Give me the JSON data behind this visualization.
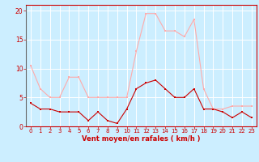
{
  "hours": [
    0,
    1,
    2,
    3,
    4,
    5,
    6,
    7,
    8,
    9,
    10,
    11,
    12,
    13,
    14,
    15,
    16,
    17,
    18,
    19,
    20,
    21,
    22,
    23
  ],
  "avg_wind": [
    4,
    3,
    3,
    2.5,
    2.5,
    2.5,
    1,
    2.5,
    1,
    0.5,
    3,
    6.5,
    7.5,
    8,
    6.5,
    5,
    5,
    6.5,
    3,
    3,
    2.5,
    1.5,
    2.5,
    1.5
  ],
  "gust_wind": [
    10.5,
    6.5,
    5,
    5,
    8.5,
    8.5,
    5,
    5,
    5,
    5,
    5,
    13,
    19.5,
    19.5,
    16.5,
    16.5,
    15.5,
    18.5,
    6.5,
    3,
    3,
    3.5,
    3.5,
    3.5
  ],
  "avg_color": "#cc0000",
  "gust_color": "#ffaaaa",
  "bg_color": "#cceeff",
  "grid_color": "#ffffff",
  "xlabel": "Vent moyen/en rafales ( km/h )",
  "ylim": [
    0,
    21
  ],
  "yticks": [
    0,
    5,
    10,
    15,
    20
  ],
  "xticks": [
    0,
    1,
    2,
    3,
    4,
    5,
    6,
    7,
    8,
    9,
    10,
    11,
    12,
    13,
    14,
    15,
    16,
    17,
    18,
    19,
    20,
    21,
    22,
    23
  ]
}
